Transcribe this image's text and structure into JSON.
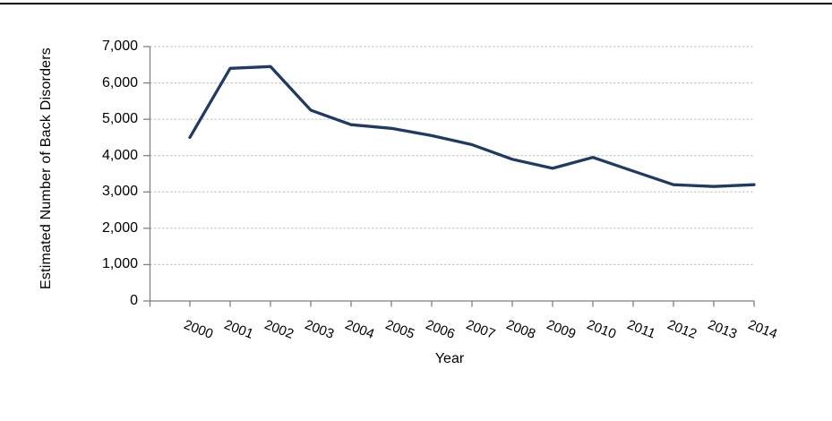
{
  "page": {
    "background_color": "#ffffff",
    "top_border_color": "#000000"
  },
  "chart_data": {
    "type": "line",
    "title": "",
    "xlabel": "Year",
    "ylabel": "Estimated Number of Back Disorders",
    "categories": [
      "2000",
      "2001",
      "2002",
      "2003",
      "2004",
      "2005",
      "2006",
      "2007",
      "2008",
      "2009",
      "2010",
      "2011",
      "2012",
      "2013",
      "2014"
    ],
    "series": [
      {
        "name": "Estimated Number of Back Disorders",
        "values": [
          4500,
          6400,
          6450,
          5250,
          4850,
          4750,
          4550,
          4300,
          3900,
          3650,
          3950,
          3575,
          3200,
          3150,
          3200
        ]
      }
    ],
    "ylim": [
      0,
      7000
    ],
    "ytick_interval": 1000,
    "ytick_labels": [
      "0",
      "1,000",
      "2,000",
      "3,000",
      "4,000",
      "5,000",
      "6,000",
      "7,000"
    ],
    "grid": "horizontal-dashed",
    "legend": "none",
    "colors": {
      "line": "#1f3a63",
      "axis": "#808080",
      "gridline": "#bfbfbf",
      "text": "#000000"
    }
  }
}
